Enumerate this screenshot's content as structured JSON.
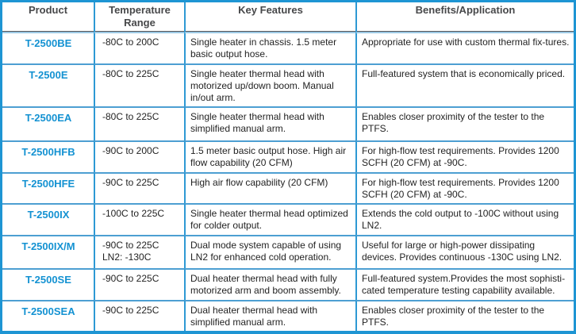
{
  "colors": {
    "frame_border": "#1e95d3",
    "grid_line": "#4d9fd2",
    "product_text": "#1492d2",
    "header_text": "#47484a",
    "body_text": "#232323"
  },
  "table": {
    "columns": [
      {
        "key": "product",
        "label": "Product"
      },
      {
        "key": "temp",
        "label": "Temperature Range"
      },
      {
        "key": "features",
        "label": "Key Features"
      },
      {
        "key": "benefits",
        "label": "Benefits/Application"
      }
    ],
    "rows": [
      {
        "product": "T-2500BE",
        "temp": "-80C to 200C",
        "features": "Single heater in chassis. 1.5 meter basic output hose.",
        "benefits": "Appropriate for use with custom thermal fix-tures."
      },
      {
        "product": "T-2500E",
        "temp": "-80C to 225C",
        "features": "Single heater thermal head with motorized up/down boom. Manual in/out arm.",
        "benefits": "Full-featured system that is economically priced."
      },
      {
        "product": "T-2500EA",
        "temp": "-80C to 225C",
        "features": "Single heater thermal head with simplified manual arm.",
        "benefits": "Enables closer proximity of the tester to the PTFS."
      },
      {
        "product": "T-2500HFB",
        "temp": "-90C to 200C",
        "features": "1.5 meter basic output hose. High air flow capability (20 CFM)",
        "benefits": "For high-flow test requirements. Provides 1200 SCFH (20 CFM) at -90C."
      },
      {
        "product": "T-2500HFE",
        "temp": "-90C to 225C",
        "features": "High air flow capability (20 CFM)",
        "benefits": "For high-flow test requirements. Provides 1200 SCFH (20 CFM) at -90C."
      },
      {
        "product": "T-2500IX",
        "temp": "-100C to 225C",
        "features": "Single heater thermal head optimized for colder output.",
        "benefits": "Extends the cold output to -100C without using LN2."
      },
      {
        "product": "T-2500IX/M",
        "temp": "-90C to 225C\nLN2: -130C",
        "features": "Dual mode system capable of using LN2 for enhanced cold operation.",
        "benefits": "Useful for large or high-power dissipating devices. Provides continuous -130C using LN2."
      },
      {
        "product": "T-2500SE",
        "temp": "-90C to 225C",
        "features": "Dual heater thermal head with fully motorized arm and boom assembly.",
        "benefits": "Full-featured system.Provides the most sophisti-cated temperature testing capability available."
      },
      {
        "product": "T-2500SEA",
        "temp": "-90C to 225C",
        "features": "Dual heater thermal head with simplified manual arm.",
        "benefits": "Enables closer proximity of the tester to the PTFS."
      }
    ]
  }
}
